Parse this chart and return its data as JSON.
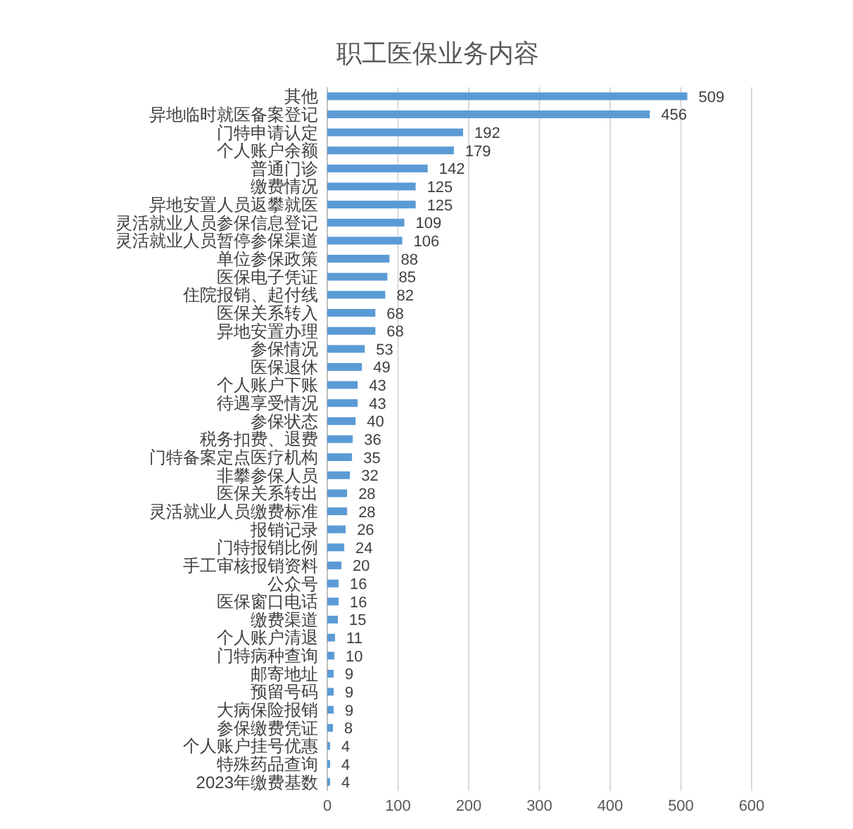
{
  "chart_data": {
    "type": "bar",
    "orientation": "horizontal",
    "title": "职工医保业务内容",
    "categories": [
      "其他",
      "异地临时就医备案登记",
      "门特申请认定",
      "个人账户余额",
      "普通门诊",
      "缴费情况",
      "异地安置人员返攀就医",
      "灵活就业人员参保信息登记",
      "灵活就业人员暂停参保渠道",
      "单位参保政策",
      "医保电子凭证",
      "住院报销、起付线",
      "医保关系转入",
      "异地安置办理",
      "参保情况",
      "医保退休",
      "个人账户下账",
      "待遇享受情况",
      "参保状态",
      "税务扣费、退费",
      "门特备案定点医疗机构",
      "非攀参保人员",
      "医保关系转出",
      "灵活就业人员缴费标准",
      "报销记录",
      "门特报销比例",
      "手工审核报销资料",
      "公众号",
      "医保窗口电话",
      "缴费渠道",
      "个人账户清退",
      "门特病种查询",
      "邮寄地址",
      "预留号码",
      "大病保险报销",
      "参保缴费凭证",
      "个人账户挂号优惠",
      "特殊药品查询",
      "2023年缴费基数"
    ],
    "values": [
      509,
      456,
      192,
      179,
      142,
      125,
      125,
      109,
      106,
      88,
      85,
      82,
      68,
      68,
      53,
      49,
      43,
      43,
      40,
      36,
      35,
      32,
      28,
      28,
      26,
      24,
      20,
      16,
      16,
      15,
      11,
      10,
      9,
      9,
      9,
      8,
      4,
      4,
      4
    ],
    "color": "#5b9bd5",
    "xlim": [
      0,
      600
    ],
    "xticks": [
      0,
      100,
      200,
      300,
      400,
      500,
      600
    ],
    "grid": "x",
    "data_labels": true
  }
}
